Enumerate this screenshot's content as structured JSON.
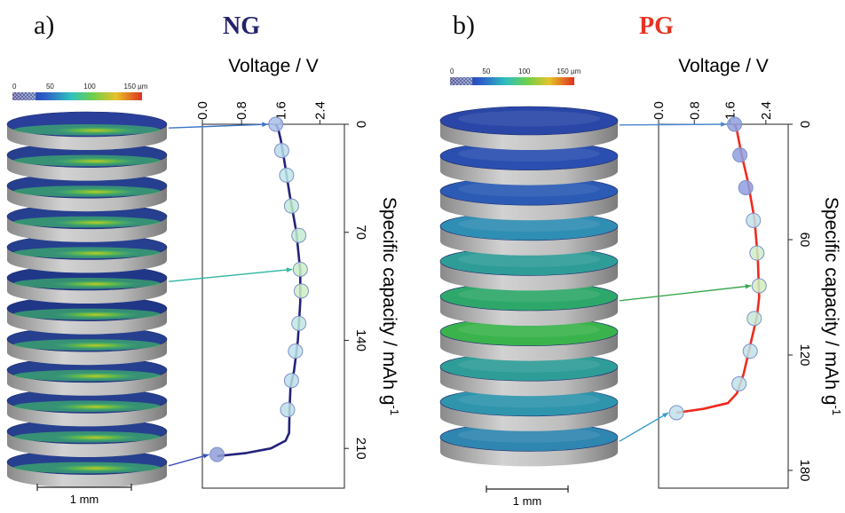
{
  "chart_data": [
    {
      "type": "line",
      "panel_letter": "a)",
      "title": "NG",
      "title_color": "#23236b",
      "line_color": "#23237a",
      "colorbar": {
        "labels": [
          "0",
          "50",
          "100",
          "150 µm"
        ]
      },
      "scale_bar_label": "1 mm",
      "voltage_axis": {
        "label": "Voltage / V",
        "ticks": [
          "0.0",
          "0.8",
          "1.6",
          "2.4"
        ],
        "range": [
          0.0,
          2.9
        ]
      },
      "capacity_axis": {
        "label": "Specific capacity / mAh g",
        "label_superscript": "-1",
        "ticks": [
          "0",
          "70",
          "140",
          "210"
        ],
        "range": [
          0,
          230
        ]
      },
      "curve": {
        "capacity": [
          0,
          3,
          10,
          25,
          45,
          70,
          95,
          115,
          140,
          160,
          170,
          185,
          200,
          205,
          210,
          213,
          215
        ],
        "voltage": [
          1.5,
          1.55,
          1.6,
          1.68,
          1.78,
          1.92,
          2.0,
          2.0,
          1.95,
          1.87,
          1.8,
          1.78,
          1.77,
          1.7,
          1.4,
          0.9,
          0.3
        ]
      },
      "markers": {
        "capacity": [
          0,
          17,
          33,
          53,
          72,
          94,
          108,
          129,
          147,
          166,
          185,
          214
        ],
        "voltage": [
          1.5,
          1.62,
          1.72,
          1.82,
          1.97,
          2.0,
          2.02,
          1.97,
          1.9,
          1.82,
          1.74,
          0.3
        ],
        "fills": [
          "#a9bfe9",
          "#b9dcea",
          "#bde6ea",
          "#c0ead4",
          "#c2ecd2",
          "#c9eec6",
          "#cdeec4",
          "#bfe6e0",
          "#bde2ea",
          "#bbdfe9",
          "#bcdfe8",
          "#8f9fd6"
        ]
      }
    },
    {
      "type": "line",
      "panel_letter": "b)",
      "title": "PG",
      "title_color": "#e53323",
      "line_color": "#ee2b1f",
      "colorbar": {
        "labels": [
          "0",
          "50",
          "100",
          "150 µm"
        ]
      },
      "scale_bar_label": "1 mm",
      "voltage_axis": {
        "label": "Voltage / V",
        "ticks": [
          "0.0",
          "0.8",
          "1.6",
          "2.4"
        ],
        "range": [
          0.0,
          2.9
        ]
      },
      "capacity_axis": {
        "label": "Specific capacity / mAh g",
        "label_superscript": "-1",
        "ticks": [
          "0",
          "60",
          "120",
          "180"
        ],
        "range": [
          0,
          180
        ]
      },
      "curve": {
        "capacity": [
          0,
          3,
          15,
          30,
          50,
          70,
          90,
          100,
          110,
          130,
          140,
          145,
          148,
          150
        ],
        "voltage": [
          1.7,
          1.75,
          1.85,
          2.0,
          2.15,
          2.22,
          2.25,
          2.2,
          2.1,
          1.9,
          1.75,
          1.55,
          1.0,
          0.4
        ]
      },
      "markers": {
        "capacity": [
          0,
          16,
          33,
          50,
          67,
          84,
          101,
          118,
          135,
          150
        ],
        "voltage": [
          1.7,
          1.82,
          1.95,
          2.12,
          2.2,
          2.25,
          2.14,
          2.05,
          1.8,
          0.4
        ],
        "fills": [
          "#8f9fe0",
          "#8f9fe0",
          "#8f9fe0",
          "#bfe2ea",
          "#cdeecb",
          "#d0edc0",
          "#c6e9d5",
          "#bfe3e8",
          "#bfe2ea",
          "#c1e0ea"
        ]
      }
    }
  ]
}
